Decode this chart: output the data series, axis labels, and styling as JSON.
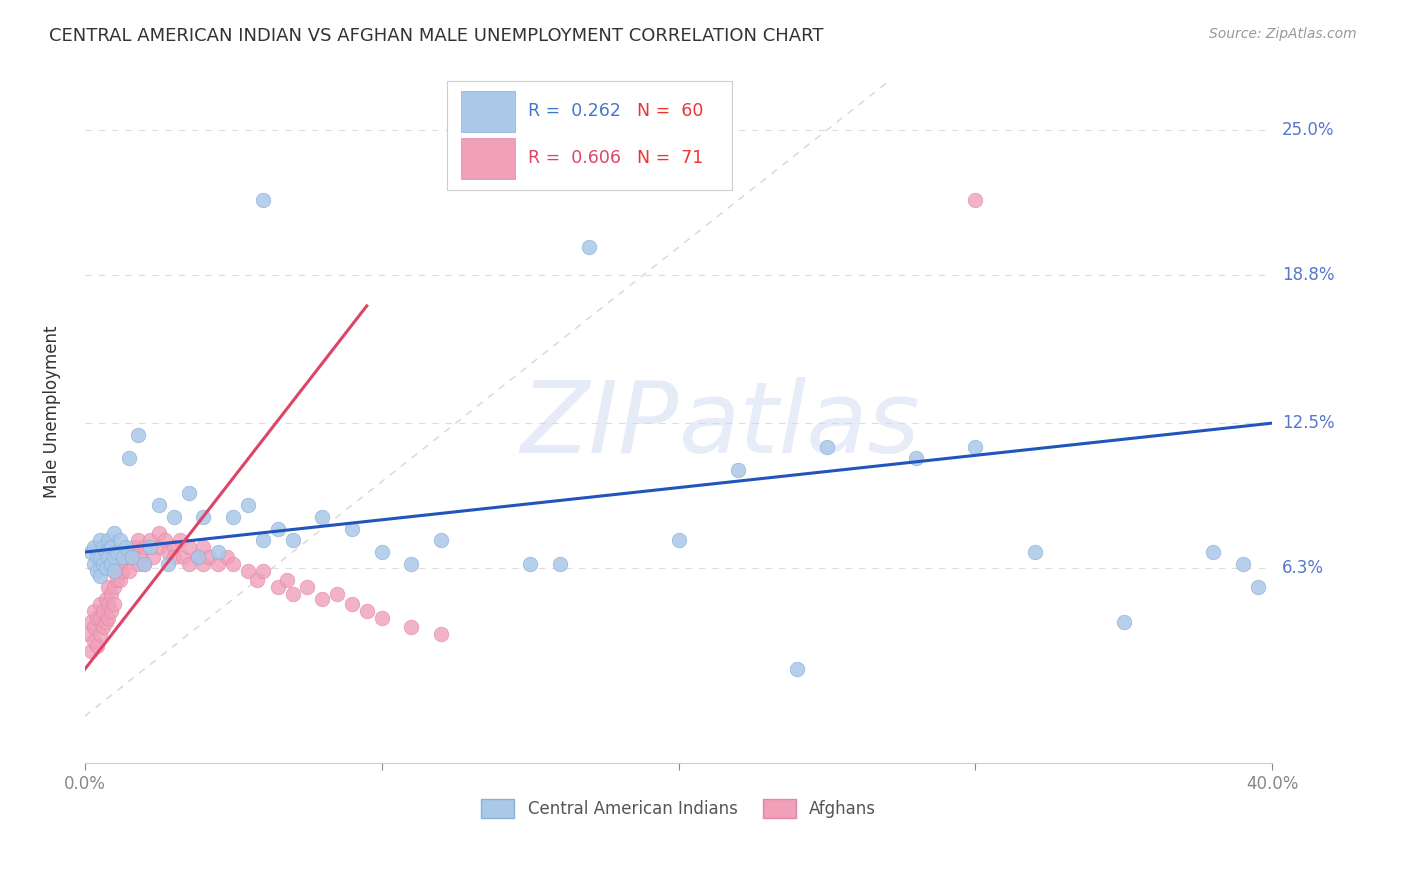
{
  "title": "CENTRAL AMERICAN INDIAN VS AFGHAN MALE UNEMPLOYMENT CORRELATION CHART",
  "source": "Source: ZipAtlas.com",
  "ylabel": "Male Unemployment",
  "ytick_values": [
    0.063,
    0.125,
    0.188,
    0.25
  ],
  "ytick_labels": [
    "6.3%",
    "12.5%",
    "18.8%",
    "25.0%"
  ],
  "xlim": [
    0.0,
    0.4
  ],
  "ylim": [
    -0.02,
    0.28
  ],
  "legend_blue_r": "0.262",
  "legend_blue_n": "60",
  "legend_pink_r": "0.606",
  "legend_pink_n": "71",
  "blue_color": "#aac8e8",
  "pink_color": "#f0a0b8",
  "blue_line_color": "#2255bb",
  "pink_line_color": "#dd4466",
  "diag_line_color": "#cccccc",
  "background_color": "#ffffff",
  "grid_color": "#dddddd",
  "blue_scatter_x": [
    0.002,
    0.003,
    0.003,
    0.004,
    0.004,
    0.005,
    0.005,
    0.005,
    0.006,
    0.006,
    0.007,
    0.007,
    0.008,
    0.008,
    0.009,
    0.009,
    0.01,
    0.01,
    0.01,
    0.011,
    0.012,
    0.013,
    0.014,
    0.015,
    0.016,
    0.018,
    0.02,
    0.022,
    0.025,
    0.028,
    0.03,
    0.035,
    0.038,
    0.04,
    0.045,
    0.05,
    0.055,
    0.06,
    0.065,
    0.07,
    0.08,
    0.09,
    0.1,
    0.11,
    0.12,
    0.15,
    0.16,
    0.2,
    0.22,
    0.25,
    0.28,
    0.3,
    0.32,
    0.35,
    0.38,
    0.39,
    0.395,
    0.06,
    0.17,
    0.24
  ],
  "blue_scatter_y": [
    0.07,
    0.065,
    0.072,
    0.068,
    0.062,
    0.075,
    0.068,
    0.06,
    0.072,
    0.065,
    0.07,
    0.063,
    0.075,
    0.068,
    0.065,
    0.072,
    0.078,
    0.068,
    0.062,
    0.07,
    0.075,
    0.068,
    0.072,
    0.11,
    0.068,
    0.12,
    0.065,
    0.072,
    0.09,
    0.065,
    0.085,
    0.095,
    0.068,
    0.085,
    0.07,
    0.085,
    0.09,
    0.075,
    0.08,
    0.075,
    0.085,
    0.08,
    0.07,
    0.065,
    0.075,
    0.065,
    0.065,
    0.075,
    0.105,
    0.115,
    0.11,
    0.115,
    0.07,
    0.04,
    0.07,
    0.065,
    0.055,
    0.22,
    0.2,
    0.02
  ],
  "pink_scatter_x": [
    0.001,
    0.002,
    0.002,
    0.003,
    0.003,
    0.003,
    0.004,
    0.004,
    0.005,
    0.005,
    0.005,
    0.006,
    0.006,
    0.007,
    0.007,
    0.008,
    0.008,
    0.008,
    0.009,
    0.009,
    0.01,
    0.01,
    0.01,
    0.011,
    0.012,
    0.012,
    0.013,
    0.014,
    0.015,
    0.015,
    0.016,
    0.017,
    0.018,
    0.018,
    0.019,
    0.02,
    0.02,
    0.022,
    0.023,
    0.025,
    0.025,
    0.027,
    0.028,
    0.03,
    0.03,
    0.032,
    0.033,
    0.035,
    0.035,
    0.038,
    0.04,
    0.04,
    0.042,
    0.045,
    0.048,
    0.05,
    0.055,
    0.058,
    0.06,
    0.065,
    0.068,
    0.07,
    0.075,
    0.08,
    0.085,
    0.09,
    0.095,
    0.1,
    0.11,
    0.12,
    0.3
  ],
  "pink_scatter_y": [
    0.035,
    0.028,
    0.04,
    0.032,
    0.038,
    0.045,
    0.03,
    0.042,
    0.035,
    0.048,
    0.042,
    0.038,
    0.045,
    0.04,
    0.05,
    0.042,
    0.048,
    0.055,
    0.045,
    0.052,
    0.055,
    0.062,
    0.048,
    0.058,
    0.065,
    0.058,
    0.062,
    0.068,
    0.07,
    0.062,
    0.068,
    0.072,
    0.065,
    0.075,
    0.068,
    0.072,
    0.065,
    0.075,
    0.068,
    0.078,
    0.072,
    0.075,
    0.07,
    0.072,
    0.068,
    0.075,
    0.068,
    0.072,
    0.065,
    0.068,
    0.072,
    0.065,
    0.068,
    0.065,
    0.068,
    0.065,
    0.062,
    0.058,
    0.062,
    0.055,
    0.058,
    0.052,
    0.055,
    0.05,
    0.052,
    0.048,
    0.045,
    0.042,
    0.038,
    0.035,
    0.22
  ],
  "blue_line_x": [
    0.0,
    0.4
  ],
  "blue_line_y": [
    0.07,
    0.125
  ],
  "pink_line_x": [
    0.0,
    0.095
  ],
  "pink_line_y": [
    0.02,
    0.175
  ]
}
